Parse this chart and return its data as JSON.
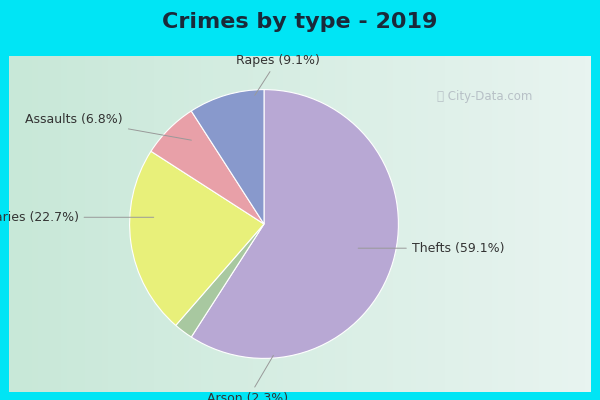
{
  "title": "Crimes by type - 2019",
  "plot_labels": [
    "Thefts",
    "Arson",
    "Burglaries",
    "Assaults",
    "Rapes"
  ],
  "plot_values": [
    59.1,
    2.3,
    22.7,
    6.8,
    9.1
  ],
  "plot_colors": [
    "#b8a8d4",
    "#a8c8a0",
    "#e8f07a",
    "#e8a0a8",
    "#8899cc"
  ],
  "background_outer": "#00e5f5",
  "title_fontsize": 16,
  "label_fontsize": 9,
  "watermark": "ⓘ City-Data.com",
  "startangle": 90
}
